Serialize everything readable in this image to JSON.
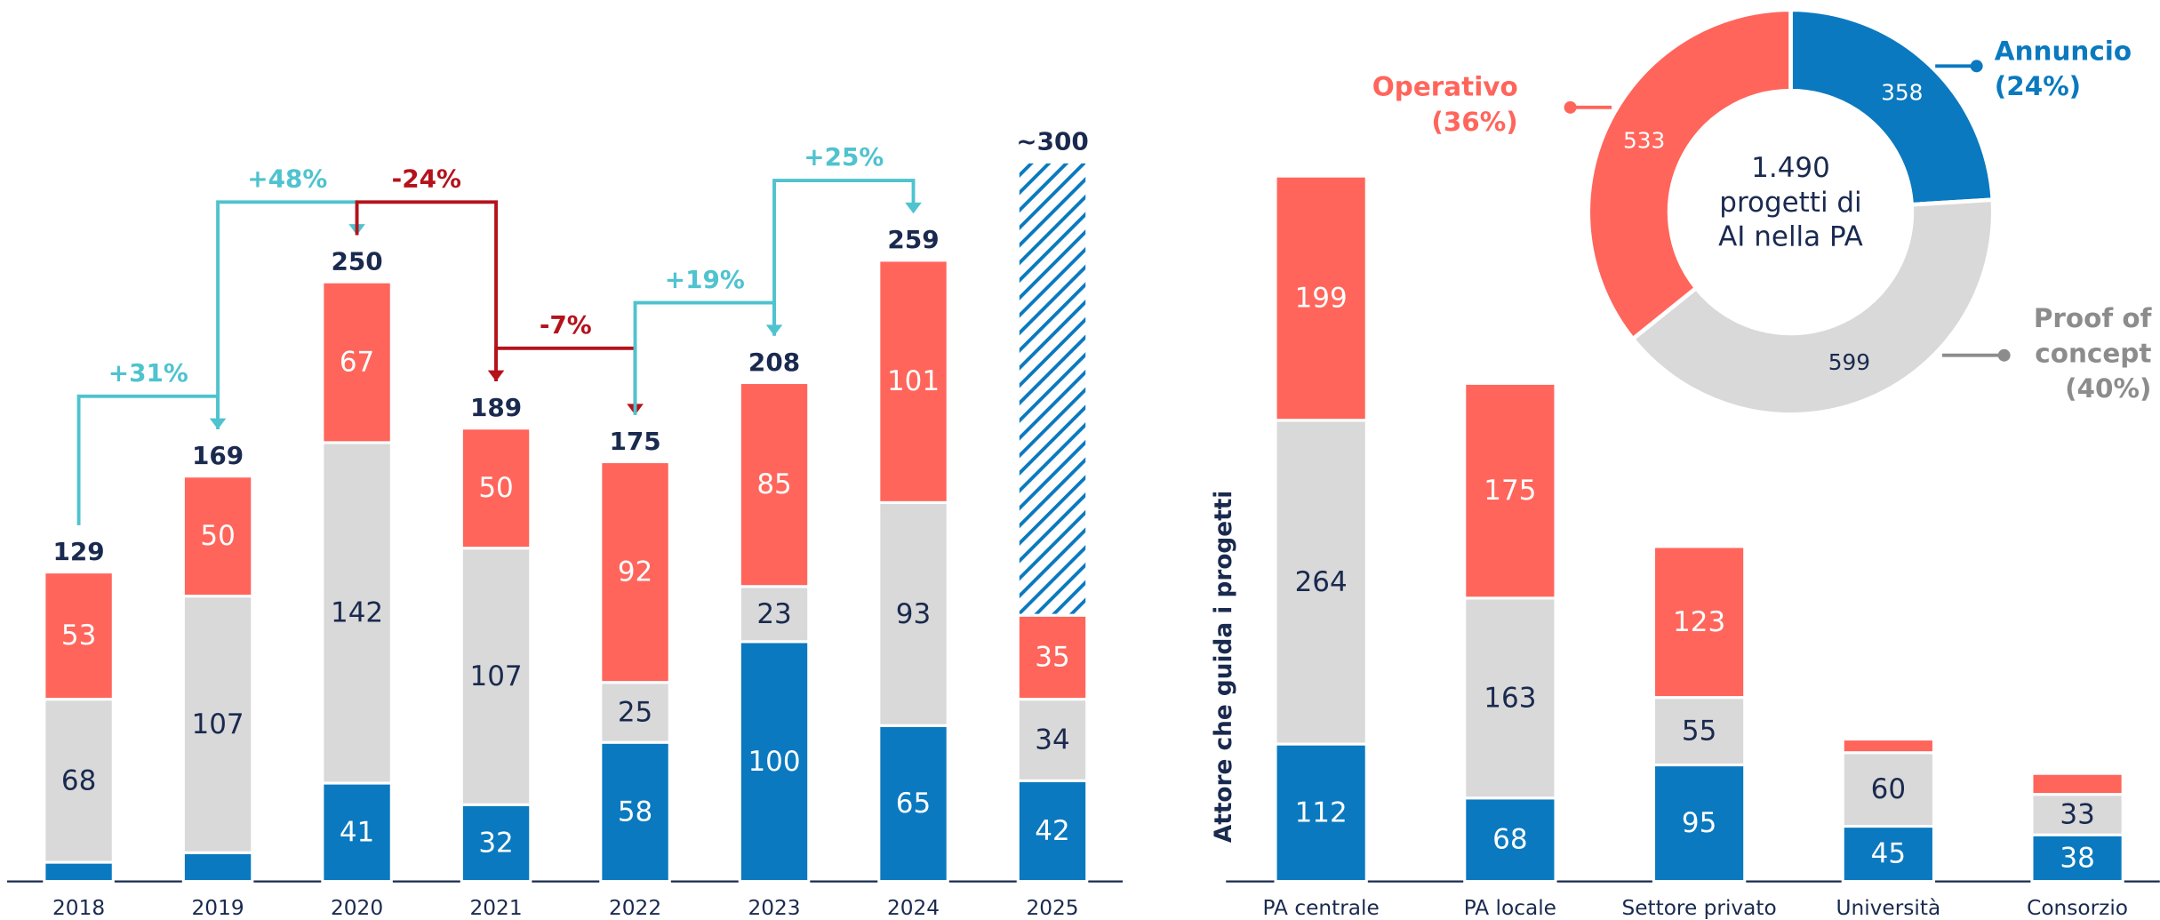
{
  "chart_data": [
    {
      "type": "bar",
      "stacked": true,
      "categories": [
        "2018",
        "2019",
        "2020",
        "2021",
        "2022",
        "2023",
        "2024",
        "2025"
      ],
      "series": [
        {
          "color": "#0a79bf",
          "values": [
            8,
            12,
            41,
            32,
            58,
            100,
            65,
            42
          ]
        },
        {
          "color": "#d9d9d9",
          "values": [
            68,
            107,
            142,
            107,
            25,
            23,
            93,
            34
          ]
        },
        {
          "color": "#ff655b",
          "values": [
            53,
            50,
            67,
            50,
            92,
            85,
            101,
            35
          ]
        },
        {
          "color": "#0a79bf",
          "pattern": "hatch",
          "values": [
            null,
            null,
            null,
            null,
            null,
            null,
            null,
            189
          ]
        }
      ],
      "totals": [
        129,
        169,
        250,
        189,
        175,
        208,
        259,
        300
      ],
      "total_labels": [
        "129",
        "169",
        "250",
        "189",
        "175",
        "208",
        "259",
        "~300"
      ],
      "changes": {
        "values": [
          31,
          48,
          -24,
          -7,
          19,
          25
        ],
        "value_labels": [
          "+31%",
          "+48%",
          "-24%",
          "-7%",
          "+19%",
          "+25%"
        ],
        "increase_color": "#4fc3cf",
        "decrease_color": "#b5121b"
      },
      "ylim": [
        0,
        340
      ]
    },
    {
      "type": "bar",
      "stacked": true,
      "ylabel": "Attore che guida i progetti",
      "categories": [
        "PA centrale",
        "PA locale",
        "Settore privato",
        "Università",
        "Consorzio"
      ],
      "series": [
        {
          "color": "#0a79bf",
          "values": [
            112,
            68,
            95,
            45,
            38
          ]
        },
        {
          "color": "#d9d9d9",
          "values": [
            264,
            163,
            55,
            60,
            33
          ]
        },
        {
          "color": "#ff655b",
          "values": [
            199,
            175,
            123,
            11,
            17
          ]
        }
      ],
      "ylim": [
        0,
        640
      ]
    },
    {
      "type": "donut",
      "center_lines": [
        "1.490",
        "progetti di",
        "AI nella PA"
      ],
      "series": [
        {
          "color": "#0a79bf",
          "label_color": "#0a79bf",
          "value": 358,
          "label_lines": [
            "Annuncio"
          ],
          "pct": 24,
          "pct_label": "(24%)"
        },
        {
          "color": "#d9d9d9",
          "label_color": "#8c8c8c",
          "value": 599,
          "label_lines": [
            "Proof of",
            "concept"
          ],
          "pct": 40,
          "pct_label": "(40%)"
        },
        {
          "color": "#ff655b",
          "label_color": "#ff655b",
          "value": 533,
          "label_lines": [
            "Operativo"
          ],
          "pct": 36,
          "pct_label": "(36%)"
        }
      ]
    }
  ]
}
